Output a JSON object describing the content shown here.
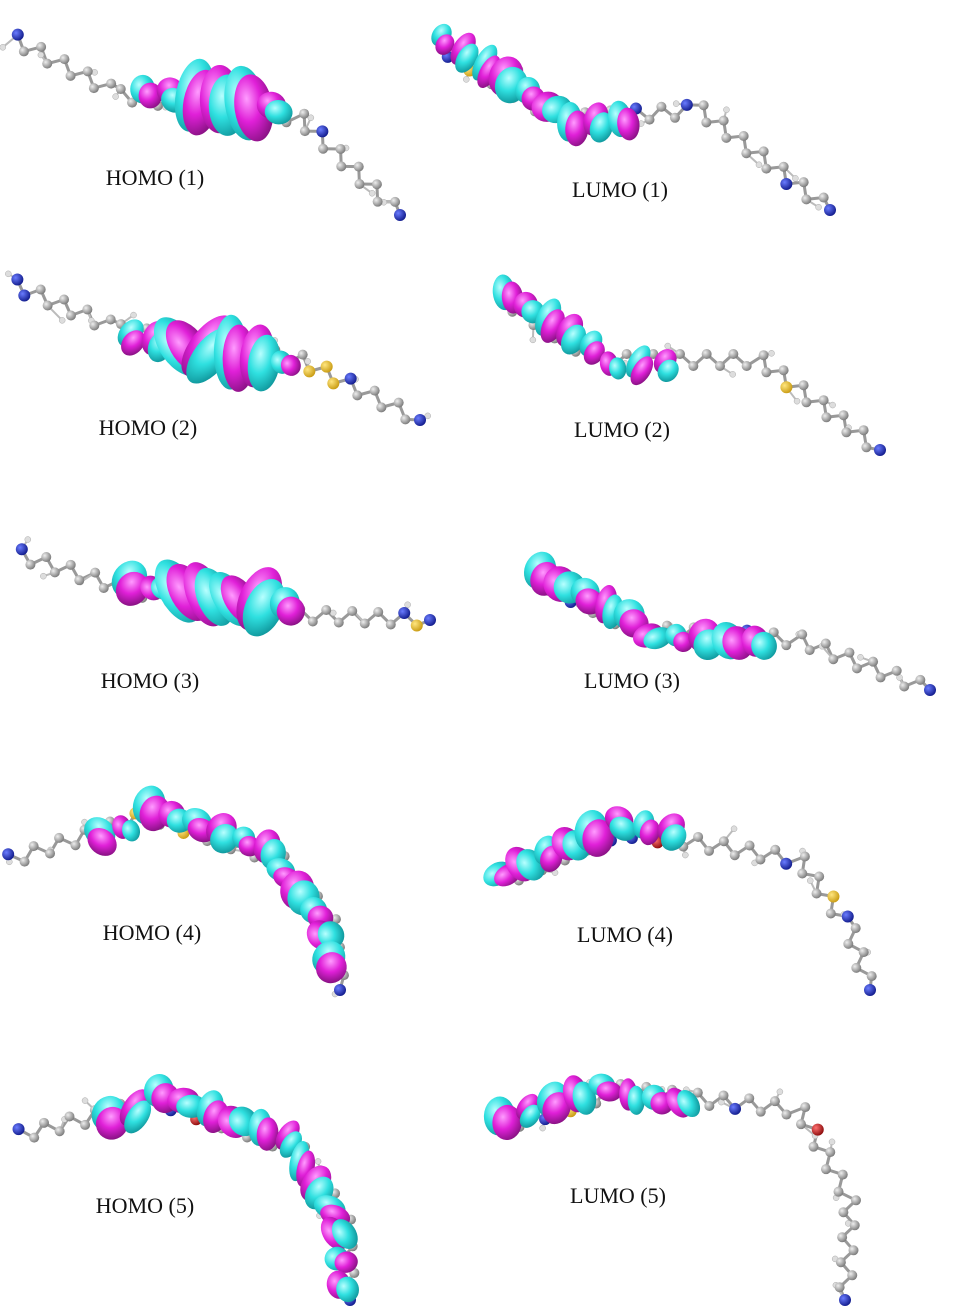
{
  "panels": [
    {
      "label": "HOMO (1)"
    },
    {
      "label": "LUMO (1)"
    },
    {
      "label": "HOMO (2)"
    },
    {
      "label": "LUMO (2)"
    },
    {
      "label": "HOMO (3)"
    },
    {
      "label": "LUMO (3)"
    },
    {
      "label": "HOMO (4)"
    },
    {
      "label": "LUMO (4)"
    },
    {
      "label": "HOMO (5)"
    },
    {
      "label": "LUMO (5)"
    }
  ]
}
